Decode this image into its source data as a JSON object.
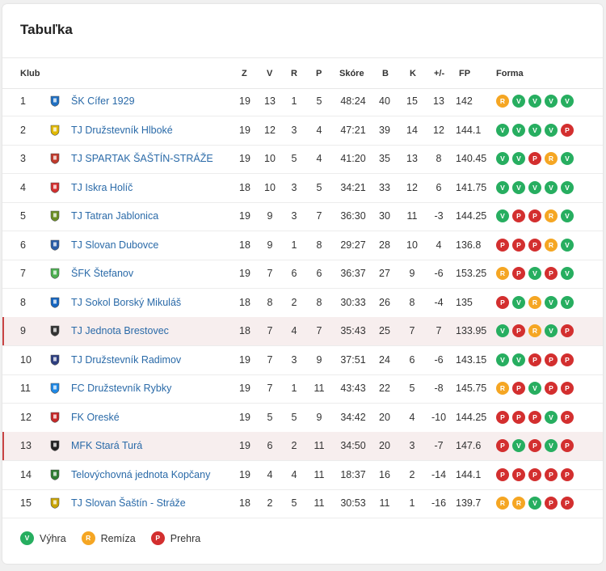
{
  "title": "Tabuľka",
  "headers": {
    "klub": "Klub",
    "z": "Z",
    "v": "V",
    "r": "R",
    "p": "P",
    "skore": "Skóre",
    "b": "B",
    "k": "K",
    "pm": "+/-",
    "fp": "FP",
    "forma": "Forma"
  },
  "colors": {
    "win": "#27ae60",
    "draw": "#f5a623",
    "loss": "#d32f2f",
    "link": "#2a6aa8",
    "highlight": "#f7eeee"
  },
  "rows": [
    {
      "pos": "1",
      "club": "ŠK Cífer 1929",
      "z": "19",
      "v": "13",
      "r": "1",
      "p": "5",
      "skore": "48:24",
      "b": "40",
      "k": "15",
      "pm": "13",
      "fp": "142",
      "form": [
        "R",
        "V",
        "V",
        "V",
        "V"
      ],
      "logo": "striped-crest-icon",
      "highlight": false
    },
    {
      "pos": "2",
      "club": "TJ Družstevník Hlboké",
      "z": "19",
      "v": "12",
      "r": "3",
      "p": "4",
      "skore": "47:21",
      "b": "39",
      "k": "14",
      "pm": "12",
      "fp": "144.1",
      "form": [
        "V",
        "V",
        "V",
        "V",
        "P"
      ],
      "logo": "yellow-blue-crest-icon",
      "highlight": false
    },
    {
      "pos": "3",
      "club": "TJ SPARTAK ŠAŠTÍN-STRÁŽE",
      "z": "19",
      "v": "10",
      "r": "5",
      "p": "4",
      "skore": "41:20",
      "b": "35",
      "k": "13",
      "pm": "8",
      "fp": "140.45",
      "form": [
        "V",
        "V",
        "P",
        "R",
        "V"
      ],
      "logo": "black-red-crest-icon",
      "highlight": false
    },
    {
      "pos": "4",
      "club": "TJ Iskra Holíč",
      "z": "18",
      "v": "10",
      "r": "3",
      "p": "5",
      "skore": "34:21",
      "b": "33",
      "k": "12",
      "pm": "6",
      "fp": "141.75",
      "form": [
        "V",
        "V",
        "V",
        "V",
        "V"
      ],
      "logo": "red-blue-crest-icon",
      "highlight": false
    },
    {
      "pos": "5",
      "club": "TJ Tatran Jablonica",
      "z": "19",
      "v": "9",
      "r": "3",
      "p": "7",
      "skore": "36:30",
      "b": "30",
      "k": "11",
      "pm": "-3",
      "fp": "144.25",
      "form": [
        "V",
        "P",
        "P",
        "R",
        "V"
      ],
      "logo": "green-crest-icon",
      "highlight": false
    },
    {
      "pos": "6",
      "club": "TJ Slovan Dubovce",
      "z": "18",
      "v": "9",
      "r": "1",
      "p": "8",
      "skore": "29:27",
      "b": "28",
      "k": "10",
      "pm": "4",
      "fp": "136.8",
      "form": [
        "P",
        "P",
        "P",
        "R",
        "V"
      ],
      "logo": "blue-crest-icon",
      "highlight": false
    },
    {
      "pos": "7",
      "club": "ŠFK Štefanov",
      "z": "19",
      "v": "7",
      "r": "6",
      "p": "6",
      "skore": "36:37",
      "b": "27",
      "k": "9",
      "pm": "-6",
      "fp": "153.25",
      "form": [
        "R",
        "P",
        "V",
        "P",
        "V"
      ],
      "logo": "green-white-crest-icon",
      "highlight": false
    },
    {
      "pos": "8",
      "club": "TJ Sokol Borský Mikuláš",
      "z": "18",
      "v": "8",
      "r": "2",
      "p": "8",
      "skore": "30:33",
      "b": "26",
      "k": "8",
      "pm": "-4",
      "fp": "135",
      "form": [
        "P",
        "V",
        "R",
        "V",
        "V"
      ],
      "logo": "red-blue-flag-crest-icon",
      "highlight": false
    },
    {
      "pos": "9",
      "club": "TJ Jednota Brestovec",
      "z": "18",
      "v": "7",
      "r": "4",
      "p": "7",
      "skore": "35:43",
      "b": "25",
      "k": "7",
      "pm": "7",
      "fp": "133.95",
      "form": [
        "V",
        "P",
        "R",
        "V",
        "P"
      ],
      "logo": "dark-crest-icon",
      "highlight": true
    },
    {
      "pos": "10",
      "club": "TJ Družstevník Radimov",
      "z": "19",
      "v": "7",
      "r": "3",
      "p": "9",
      "skore": "37:51",
      "b": "24",
      "k": "6",
      "pm": "-6",
      "fp": "143.15",
      "form": [
        "V",
        "V",
        "P",
        "P",
        "P"
      ],
      "logo": "navy-shield-crest-icon",
      "highlight": false
    },
    {
      "pos": "11",
      "club": "FC Družstevník Rybky",
      "z": "19",
      "v": "7",
      "r": "1",
      "p": "11",
      "skore": "43:43",
      "b": "22",
      "k": "5",
      "pm": "-8",
      "fp": "145.75",
      "form": [
        "R",
        "P",
        "V",
        "P",
        "P"
      ],
      "logo": "round-blue-yellow-crest-icon",
      "highlight": false
    },
    {
      "pos": "12",
      "club": "FK Oreské",
      "z": "19",
      "v": "5",
      "r": "5",
      "p": "9",
      "skore": "34:42",
      "b": "20",
      "k": "4",
      "pm": "-10",
      "fp": "144.25",
      "form": [
        "P",
        "P",
        "P",
        "V",
        "P"
      ],
      "logo": "red-white-crest-icon",
      "highlight": false
    },
    {
      "pos": "13",
      "club": "MFK Stará Turá",
      "z": "19",
      "v": "6",
      "r": "2",
      "p": "11",
      "skore": "34:50",
      "b": "20",
      "k": "3",
      "pm": "-7",
      "fp": "147.6",
      "form": [
        "P",
        "V",
        "P",
        "V",
        "P"
      ],
      "logo": "yellow-black-crest-icon",
      "highlight": true
    },
    {
      "pos": "14",
      "club": "Telovýchovná jednota Kopčany",
      "z": "19",
      "v": "4",
      "r": "4",
      "p": "11",
      "skore": "18:37",
      "b": "16",
      "k": "2",
      "pm": "-14",
      "fp": "144.1",
      "form": [
        "P",
        "P",
        "P",
        "P",
        "P"
      ],
      "logo": "green-yellow-crest-icon",
      "highlight": false
    },
    {
      "pos": "15",
      "club": "TJ Slovan Šaštín - Stráže",
      "z": "18",
      "v": "2",
      "r": "5",
      "p": "11",
      "skore": "30:53",
      "b": "11",
      "k": "1",
      "pm": "-16",
      "fp": "139.7",
      "form": [
        "R",
        "R",
        "V",
        "P",
        "P"
      ],
      "logo": "yellow-white-crest-icon",
      "highlight": false
    }
  ],
  "legend": [
    {
      "letter": "V",
      "label": "Výhra"
    },
    {
      "letter": "R",
      "label": "Remíza"
    },
    {
      "letter": "P",
      "label": "Prehra"
    }
  ]
}
